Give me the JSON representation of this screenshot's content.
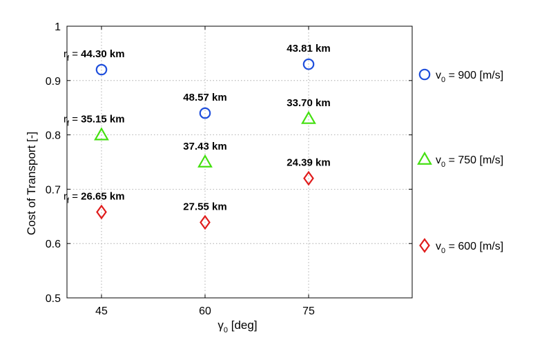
{
  "chart_data": {
    "type": "scatter",
    "xlabel": "γ",
    "xlabel_sub": "0",
    "xlabel_unit": " [deg]",
    "ylabel": "Cost of Transport [-]",
    "xlim": [
      40,
      90
    ],
    "ylim": [
      0.5,
      1.0
    ],
    "xticks": [
      45,
      60,
      75
    ],
    "yticks": [
      0.5,
      0.6,
      0.7,
      0.8,
      0.9,
      1.0
    ],
    "ytick_labels": [
      "0.5",
      "0.6",
      "0.7",
      "0.8",
      "0.9",
      "1"
    ],
    "grid": true,
    "legend_position": "right",
    "series": [
      {
        "name": "v0 = 900 [m/s]",
        "legend_main": "v",
        "legend_sub": "0",
        "legend_rest": " = 900 [m/s]",
        "marker": "circle",
        "color": "#1f4fdc",
        "points": [
          {
            "x": 45,
            "y": 0.92,
            "label": "44.30 km",
            "rf_prefix": true
          },
          {
            "x": 60,
            "y": 0.84,
            "label": "48.57 km",
            "rf_prefix": false
          },
          {
            "x": 75,
            "y": 0.93,
            "label": "43.81 km",
            "rf_prefix": false
          }
        ]
      },
      {
        "name": "v0 = 750 [m/s]",
        "legend_main": "v",
        "legend_sub": "0",
        "legend_rest": " = 750 [m/s]",
        "marker": "triangle",
        "color": "#44e010",
        "points": [
          {
            "x": 45,
            "y": 0.8,
            "label": "35.15 km",
            "rf_prefix": true
          },
          {
            "x": 60,
            "y": 0.75,
            "label": "37.43 km",
            "rf_prefix": false
          },
          {
            "x": 75,
            "y": 0.83,
            "label": "33.70 km",
            "rf_prefix": false
          }
        ]
      },
      {
        "name": "v0 = 600 [m/s]",
        "legend_main": "v",
        "legend_sub": "0",
        "legend_rest": " = 600 [m/s]",
        "marker": "diamond",
        "color": "#e01b1b",
        "points": [
          {
            "x": 45,
            "y": 0.658,
            "label": "26.65 km",
            "rf_prefix": true
          },
          {
            "x": 60,
            "y": 0.639,
            "label": "27.55 km",
            "rf_prefix": false
          },
          {
            "x": 75,
            "y": 0.72,
            "label": "24.39 km",
            "rf_prefix": false
          }
        ]
      }
    ],
    "rf_main": "r",
    "rf_sub": "f",
    "rf_eq": " = "
  }
}
